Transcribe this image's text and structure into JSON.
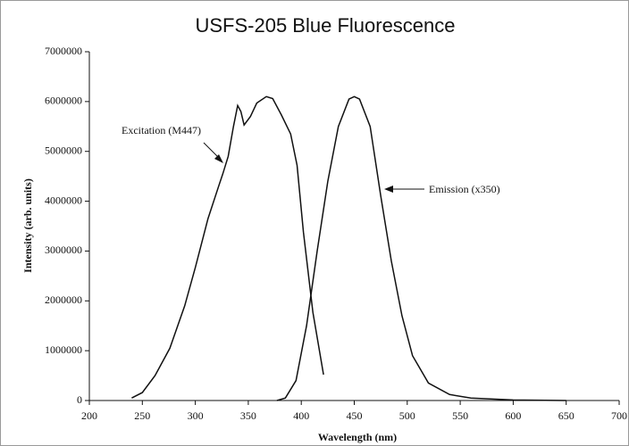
{
  "chart_data": {
    "type": "line",
    "title": "USFS-205 Blue Fluorescence",
    "x_label": "Wavelength (nm)",
    "y_label": "Intensity (arb. units)",
    "xlim": [
      200,
      700
    ],
    "ylim": [
      0,
      7000000
    ],
    "xticks": [
      200,
      250,
      300,
      350,
      400,
      450,
      500,
      550,
      600,
      650,
      700
    ],
    "yticks": [
      0,
      1000000,
      2000000,
      3000000,
      4000000,
      5000000,
      6000000,
      7000000
    ],
    "annotations": [
      "Excitation (M447)",
      "Emission (x350)"
    ],
    "series": [
      {
        "name": "Excitation (M447)",
        "color": "#111111",
        "x": [
          240,
          250,
          262,
          276,
          290,
          300,
          312,
          322,
          326,
          331,
          336,
          340,
          343,
          346,
          352,
          358,
          367,
          373,
          381,
          390,
          396,
          402,
          411,
          421
        ],
        "values": [
          50000,
          160000,
          500000,
          1050000,
          1900000,
          2670000,
          3650000,
          4300000,
          4550000,
          4900000,
          5500000,
          5920000,
          5800000,
          5530000,
          5700000,
          5970000,
          6100000,
          6060000,
          5740000,
          5350000,
          4720000,
          3380000,
          1770000,
          520000
        ]
      },
      {
        "name": "Emission (x350)",
        "color": "#111111",
        "x": [
          377,
          385,
          395,
          405,
          415,
          425,
          435,
          445,
          450,
          455,
          465,
          475,
          485,
          495,
          505,
          520,
          540,
          560,
          600,
          650
        ],
        "values": [
          0,
          50000,
          400000,
          1500000,
          3000000,
          4400000,
          5500000,
          6050000,
          6100000,
          6050000,
          5500000,
          4100000,
          2800000,
          1700000,
          900000,
          350000,
          120000,
          50000,
          10000,
          0
        ]
      }
    ]
  }
}
